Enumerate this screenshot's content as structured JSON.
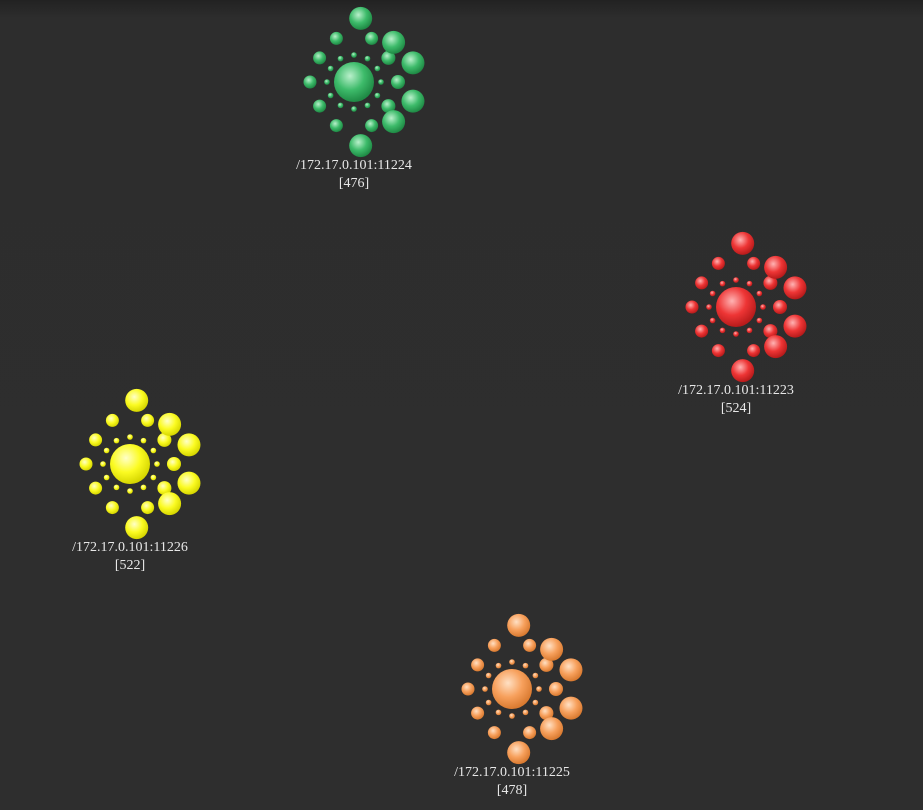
{
  "nodes": [
    {
      "id": "node-11224",
      "address": "/172.17.0.101:11224",
      "count": "[476]",
      "color": "#3dbb6a",
      "color_light": "#b9f0cb",
      "color_dark": "#1f8a45"
    },
    {
      "id": "node-11223",
      "address": "/172.17.0.101:11223",
      "count": "[524]",
      "color": "#ee3535",
      "color_light": "#ffb3b3",
      "color_dark": "#b81b1b"
    },
    {
      "id": "node-11226",
      "address": "/172.17.0.101:11226",
      "count": "[522]",
      "color": "#fbfb22",
      "color_light": "#ffffc8",
      "color_dark": "#d6d600"
    },
    {
      "id": "node-11225",
      "address": "/172.17.0.101:11225",
      "count": "[478]",
      "color": "#f7a05c",
      "color_light": "#ffe0c4",
      "color_dark": "#d97a30"
    }
  ]
}
